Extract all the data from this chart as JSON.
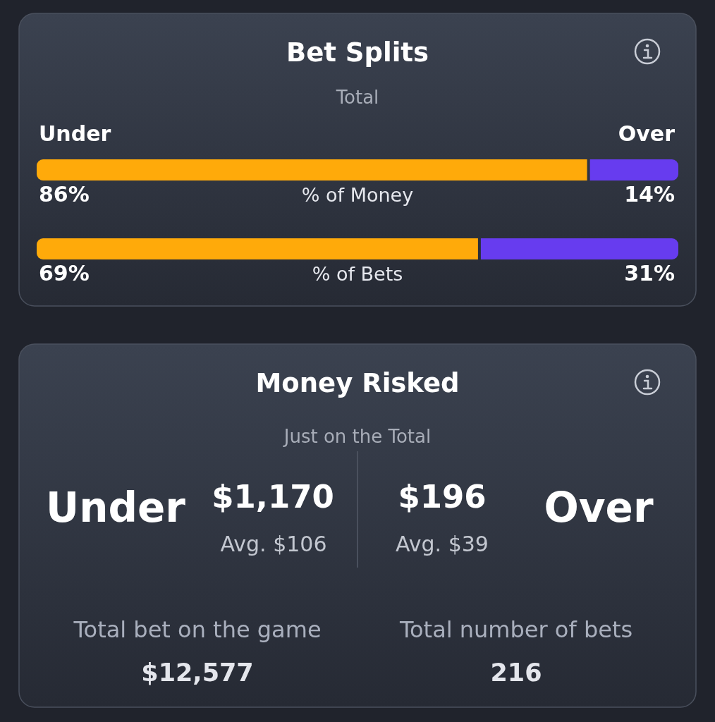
{
  "chart_data": [
    {
      "type": "bar",
      "orientation": "horizontal",
      "stacked": true,
      "title": "Bet Splits",
      "subtitle": "Total",
      "categories": [
        "% of Money",
        "% of Bets"
      ],
      "tick_labels": "y",
      "series": [
        {
          "name": "Under",
          "color": "#ffaa0a",
          "values": [
            86,
            69
          ],
          "value_labels": [
            "86%",
            "69%"
          ]
        },
        {
          "name": "Over",
          "color": "#673cef",
          "values": [
            14,
            31
          ],
          "value_labels": [
            "14%",
            "31%"
          ]
        }
      ]
    },
    {
      "type": "other",
      "title": "Money Risked",
      "subtitle": "Just on the Total",
      "annotations": [
        "Under",
        "$1,170",
        "Avg. $106",
        "$196",
        "Avg. $39",
        "Over",
        "Total bet on the game",
        "$12,577",
        "Total number of bets",
        "216"
      ]
    }
  ]
}
